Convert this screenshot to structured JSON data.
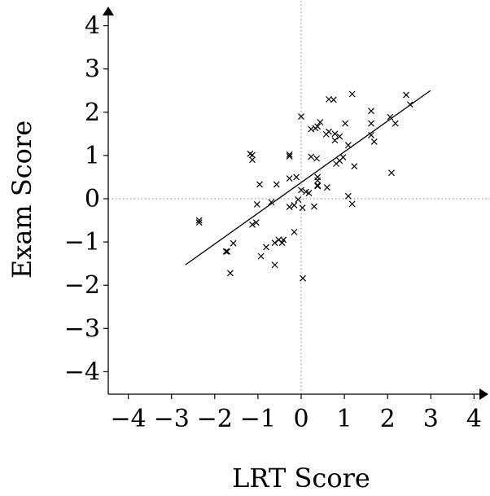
{
  "chart_data": {
    "type": "scatter",
    "xlabel": "LRT Score",
    "ylabel": "Exam Score",
    "xlim": [
      -4.5,
      4.5
    ],
    "ylim": [
      -4.5,
      4.5
    ],
    "xticks": [
      -4,
      -3,
      -2,
      -1,
      0,
      1,
      2,
      3,
      4
    ],
    "yticks": [
      -4,
      -3,
      -2,
      -1,
      0,
      1,
      2,
      3,
      4
    ],
    "xtick_labels": [
      "−4",
      "−3",
      "−2",
      "−1",
      "0",
      "1",
      "2",
      "3",
      "4"
    ],
    "ytick_labels": [
      "−4",
      "−3",
      "−2",
      "−1",
      "0",
      "1",
      "2",
      "3",
      "4"
    ],
    "zero_lines": true,
    "grid": false,
    "marker": "x",
    "fit_line": {
      "x": [
        -2.68,
        2.99
      ],
      "y": [
        -1.53,
        2.5
      ]
    },
    "points": [
      [
        -2.36,
        -0.5
      ],
      [
        -2.36,
        -0.55
      ],
      [
        -1.74,
        -1.22
      ],
      [
        -1.71,
        -1.22
      ],
      [
        -1.64,
        -1.72
      ],
      [
        -1.57,
        -1.03
      ],
      [
        -1.18,
        1.04
      ],
      [
        -1.13,
        1.01
      ],
      [
        -1.13,
        0.9
      ],
      [
        -1.13,
        -0.6
      ],
      [
        -1.04,
        -0.55
      ],
      [
        -1.02,
        -0.13
      ],
      [
        -0.96,
        0.33
      ],
      [
        -0.93,
        -1.33
      ],
      [
        -0.81,
        -1.12
      ],
      [
        -0.69,
        -0.08
      ],
      [
        -0.57,
        0.33
      ],
      [
        -0.61,
        -1.02
      ],
      [
        -0.61,
        -1.53
      ],
      [
        -0.52,
        -0.95
      ],
      [
        -0.44,
        -1.02
      ],
      [
        -0.41,
        -0.95
      ],
      [
        -0.27,
        1.02
      ],
      [
        -0.27,
        0.98
      ],
      [
        -0.27,
        0.47
      ],
      [
        -0.27,
        -0.19
      ],
      [
        -0.11,
        0.5
      ],
      [
        -0.16,
        -0.15
      ],
      [
        -0.16,
        -0.77
      ],
      [
        -0.07,
        -0.02
      ],
      [
        0.0,
        0.2
      ],
      [
        0.0,
        1.9
      ],
      [
        0.03,
        -0.21
      ],
      [
        0.04,
        -1.84
      ],
      [
        0.11,
        0.16
      ],
      [
        0.18,
        0.13
      ],
      [
        0.23,
        0.97
      ],
      [
        0.23,
        1.61
      ],
      [
        0.3,
        -0.18
      ],
      [
        0.33,
        1.63
      ],
      [
        0.38,
        1.67
      ],
      [
        0.36,
        0.93
      ],
      [
        0.38,
        0.5
      ],
      [
        0.38,
        0.42
      ],
      [
        0.38,
        0.29
      ],
      [
        0.38,
        0.31
      ],
      [
        0.44,
        1.77
      ],
      [
        0.58,
        1.49
      ],
      [
        0.6,
        0.26
      ],
      [
        0.64,
        2.3
      ],
      [
        0.64,
        1.55
      ],
      [
        0.75,
        2.29
      ],
      [
        0.78,
        1.5
      ],
      [
        0.78,
        1.35
      ],
      [
        0.81,
        0.81
      ],
      [
        0.89,
        0.88
      ],
      [
        0.89,
        1.44
      ],
      [
        0.97,
        0.96
      ],
      [
        1.02,
        1.74
      ],
      [
        1.09,
        1.24
      ],
      [
        1.09,
        0.06
      ],
      [
        1.18,
        -0.12
      ],
      [
        1.18,
        2.42
      ],
      [
        1.23,
        0.75
      ],
      [
        1.62,
        2.03
      ],
      [
        1.62,
        1.74
      ],
      [
        1.62,
        1.47
      ],
      [
        1.69,
        1.32
      ],
      [
        2.06,
        1.89
      ],
      [
        2.09,
        0.6
      ],
      [
        2.18,
        1.74
      ],
      [
        2.43,
        2.4
      ],
      [
        2.52,
        2.18
      ]
    ]
  }
}
